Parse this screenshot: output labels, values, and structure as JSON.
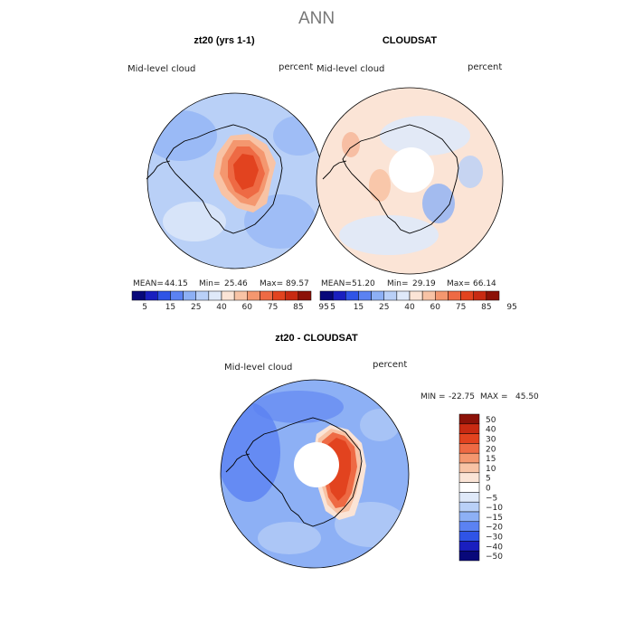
{
  "figure": {
    "title": "ANN",
    "colors": {
      "coast": "#000000",
      "bg": "#ffffff"
    }
  },
  "chart_data": [
    {
      "type": "heatmap",
      "projection": "south-polar-stereographic",
      "title": "zt20 (yrs 1-1)",
      "left_label": "Mid-level cloud",
      "right_label": "percent",
      "stats": {
        "mean_label": "MEAN=",
        "mean": "44.15",
        "min_label": "Min=",
        "min": "25.46",
        "max_label": "Max=",
        "max": "89.57"
      },
      "colorbar": {
        "orientation": "horizontal",
        "tick_labels": [
          "5",
          "15",
          "25",
          "40",
          "60",
          "75",
          "85",
          "95"
        ],
        "colors": [
          "#08087a",
          "#1a1fbf",
          "#2f54e6",
          "#5b82f2",
          "#8db0f5",
          "#b9d0f7",
          "#dfe9f9",
          "#fbe4d6",
          "#f8c3a5",
          "#f4976f",
          "#ee6a44",
          "#e2431f",
          "#c82a12",
          "#8c1208"
        ]
      },
      "fill_color": "#b9d0f7",
      "hotspot_colors": [
        "#f8c3a5",
        "#f4976f",
        "#ee6a44",
        "#e2431f"
      ]
    },
    {
      "type": "heatmap",
      "projection": "south-polar-stereographic",
      "title": "CLOUDSAT",
      "left_label": "Mid-level cloud",
      "right_label": "percent",
      "stats": {
        "mean_label": "MEAN=",
        "mean": "51.20",
        "min_label": "Min=",
        "min": "29.19",
        "max_label": "Max=",
        "max": "66.14"
      },
      "colorbar": {
        "orientation": "horizontal",
        "tick_labels": [
          "5",
          "15",
          "25",
          "40",
          "60",
          "75",
          "85",
          "95"
        ],
        "colors": [
          "#08087a",
          "#1a1fbf",
          "#2f54e6",
          "#5b82f2",
          "#8db0f5",
          "#b9d0f7",
          "#dfe9f9",
          "#fbe4d6",
          "#f8c3a5",
          "#f4976f",
          "#ee6a44",
          "#e2431f",
          "#c82a12",
          "#8c1208"
        ]
      },
      "fill_color": "#fbe4d6",
      "missing_pole": true
    },
    {
      "type": "heatmap",
      "projection": "south-polar-stereographic",
      "title": "zt20 - CLOUDSAT",
      "left_label": "Mid-level cloud",
      "right_label": "percent",
      "stats": {
        "min_label": "MIN =",
        "min": "-22.75",
        "max_label": "MAX =",
        "max": "45.50"
      },
      "colorbar": {
        "orientation": "vertical",
        "tick_labels": [
          "50",
          "40",
          "30",
          "20",
          "15",
          "10",
          "5",
          "0",
          "−5",
          "−10",
          "−15",
          "−20",
          "−30",
          "−40",
          "−50"
        ],
        "colors": [
          "#8c1208",
          "#c82a12",
          "#e2431f",
          "#ee6a44",
          "#f4976f",
          "#f8c3a5",
          "#fbe4d6",
          "#ffffff",
          "#dfe9f9",
          "#b9d0f7",
          "#8db0f5",
          "#5b82f2",
          "#2f54e6",
          "#1a1fbf",
          "#08087a"
        ]
      },
      "fill_color": "#8db0f5",
      "missing_pole": true
    }
  ]
}
